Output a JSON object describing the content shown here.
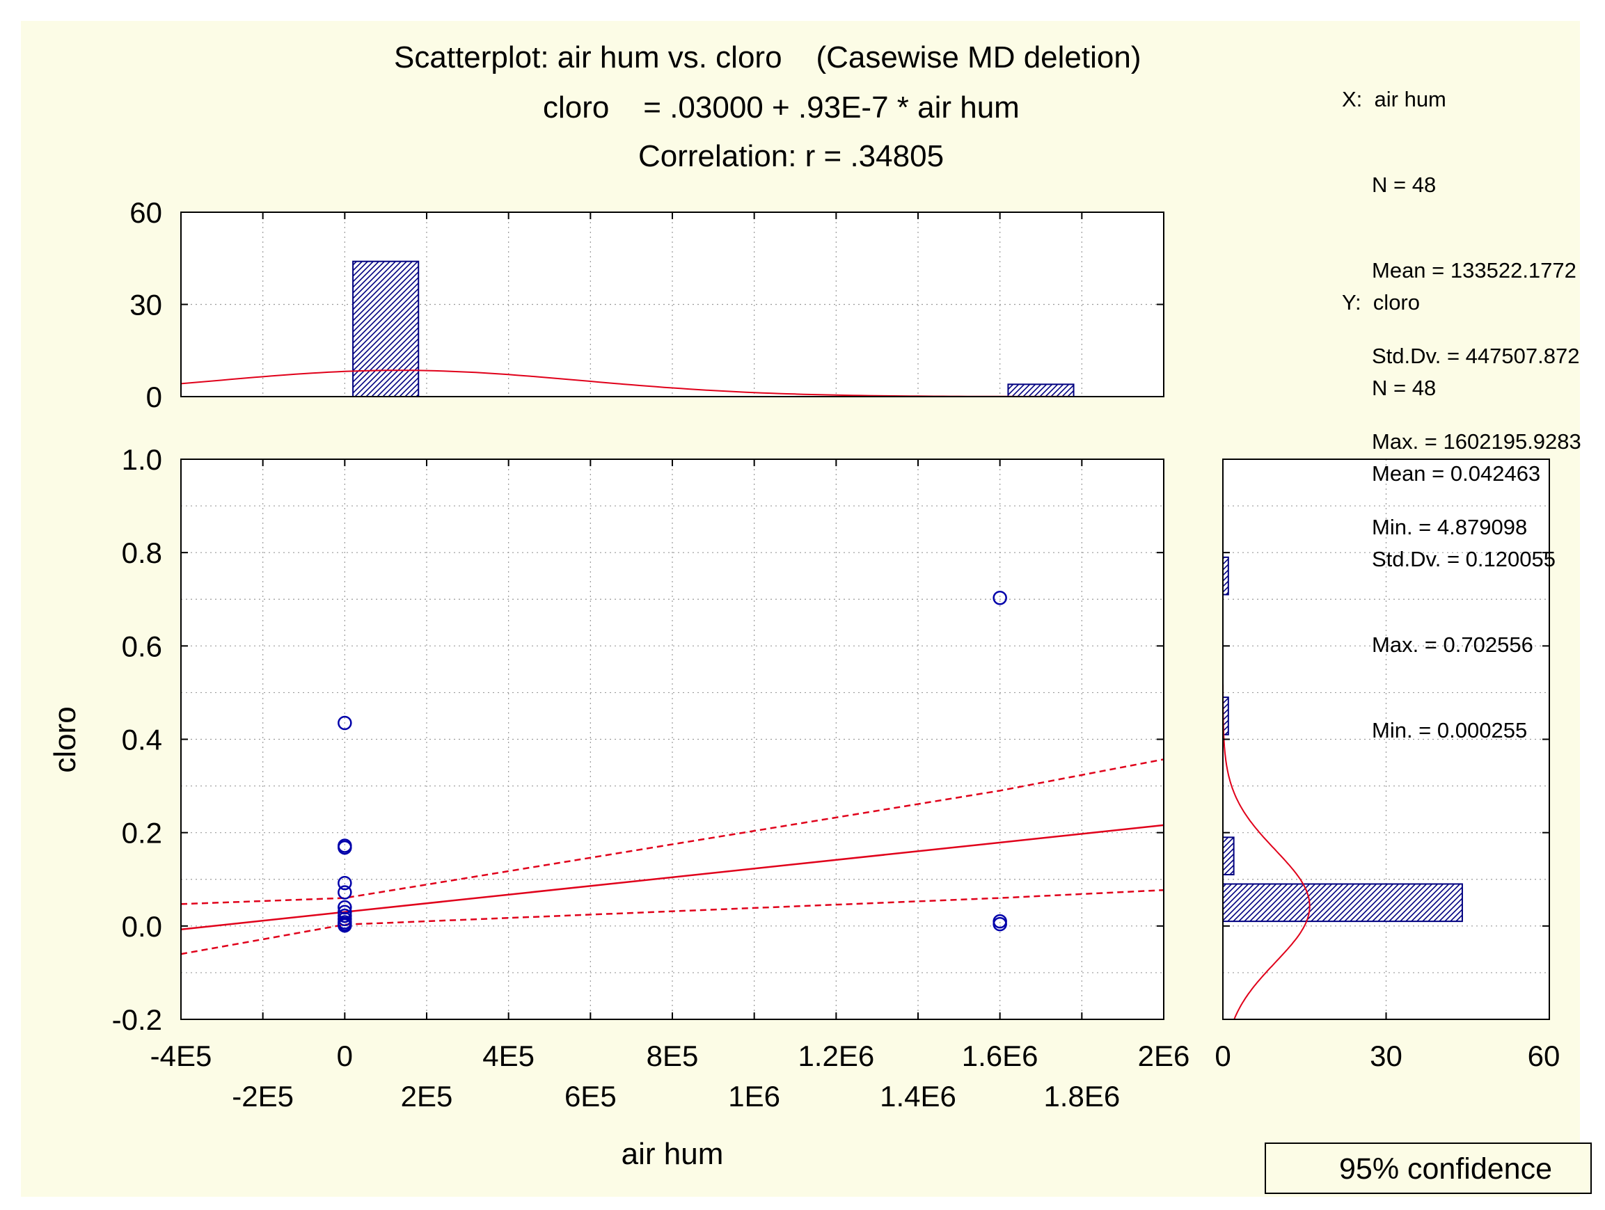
{
  "window": {
    "title": "Scatterplot: air hum vs. cloro    (Casewise MD deletion)",
    "equation": "cloro    = .03000 + .93E-7 * air hum",
    "correlation": "Correlation: r = .34805"
  },
  "stats_x": {
    "header": "X:  air hum",
    "n": "N = 48",
    "mean": "Mean = 133522.1772",
    "stddev": "Std.Dv. = 447507.872",
    "max": "Max. = 1602195.9283",
    "min": "Min. = 4.879098"
  },
  "stats_y": {
    "header": "Y:  cloro",
    "n": "N = 48",
    "mean": "Mean = 0.042463",
    "stddev": "Std.Dv. = 0.120055",
    "max": "Max. = 0.702556",
    "min": "Min. = 0.000255"
  },
  "legend": {
    "label": "95% confidence"
  },
  "colors": {
    "background": "#fcfce6",
    "points": "#0000aa",
    "regression": "#e0001a",
    "bars": "#000080",
    "grid": "#999999"
  },
  "chart_data": [
    {
      "type": "scatter",
      "xlabel": "air hum",
      "ylabel": "cloro",
      "xlim": [
        -400000,
        2000000
      ],
      "ylim": [
        -0.2,
        1.0
      ],
      "x_ticks_upper": [
        "-4E5",
        "0",
        "4E5",
        "8E5",
        "1.2E6",
        "1.6E6",
        "2E6"
      ],
      "x_ticks_lower": [
        "-2E5",
        "2E5",
        "6E5",
        "1E6",
        "1.4E6",
        "1.8E6"
      ],
      "y_ticks": [
        "-0.2",
        "0.0",
        "0.2",
        "0.4",
        "0.6",
        "0.8",
        "1.0"
      ],
      "grid": true,
      "points": [
        {
          "x": 0,
          "y": 0.435
        },
        {
          "x": 0,
          "y": 0.172
        },
        {
          "x": 0,
          "y": 0.168
        },
        {
          "x": 0,
          "y": 0.092
        },
        {
          "x": 0,
          "y": 0.072
        },
        {
          "x": 0,
          "y": 0.04
        },
        {
          "x": 0,
          "y": 0.03
        },
        {
          "x": 0,
          "y": 0.022
        },
        {
          "x": 0,
          "y": 0.015
        },
        {
          "x": 0,
          "y": 0.008
        },
        {
          "x": 0,
          "y": 0.004
        },
        {
          "x": 0,
          "y": 0.001
        },
        {
          "x": 1600000,
          "y": 0.703
        },
        {
          "x": 1600000,
          "y": 0.01
        },
        {
          "x": 1600000,
          "y": 0.004
        }
      ],
      "regression": {
        "intercept": 0.03,
        "slope": 9.3e-08
      },
      "confidence_band": {
        "upper": [
          {
            "x": -400000,
            "y": 0.047
          },
          {
            "x": 0,
            "y": 0.06
          },
          {
            "x": 1600000,
            "y": 0.29
          },
          {
            "x": 2000000,
            "y": 0.357
          }
        ],
        "lower": [
          {
            "x": -400000,
            "y": -0.06
          },
          {
            "x": 0,
            "y": 0.003
          },
          {
            "x": 1600000,
            "y": 0.06
          },
          {
            "x": 2000000,
            "y": 0.077
          }
        ]
      },
      "legend": {
        "entries": [
          "95% confidence"
        ],
        "position": "bottom-right"
      }
    },
    {
      "type": "bar",
      "orientation": "vertical",
      "role": "x-marginal histogram",
      "ylim": [
        0,
        60
      ],
      "y_ticks": [
        "0",
        "30",
        "60"
      ],
      "bins": [
        {
          "x0": 20000,
          "x1": 180000,
          "count": 44
        },
        {
          "x0": 1620000,
          "x1": 1780000,
          "count": 4
        }
      ],
      "normal_curve": {
        "mean": 133522.1772,
        "sd": 447507.872
      }
    },
    {
      "type": "bar",
      "orientation": "horizontal",
      "role": "y-marginal histogram",
      "xlim": [
        0,
        60
      ],
      "x_ticks": [
        "0",
        "30",
        "60"
      ],
      "bins": [
        {
          "y0": 0.01,
          "y1": 0.09,
          "count": 44
        },
        {
          "y0": 0.11,
          "y1": 0.19,
          "count": 2
        },
        {
          "y0": 0.41,
          "y1": 0.49,
          "count": 1
        },
        {
          "y0": 0.71,
          "y1": 0.79,
          "count": 1
        }
      ],
      "normal_curve": {
        "mean": 0.042463,
        "sd": 0.120055
      }
    }
  ]
}
